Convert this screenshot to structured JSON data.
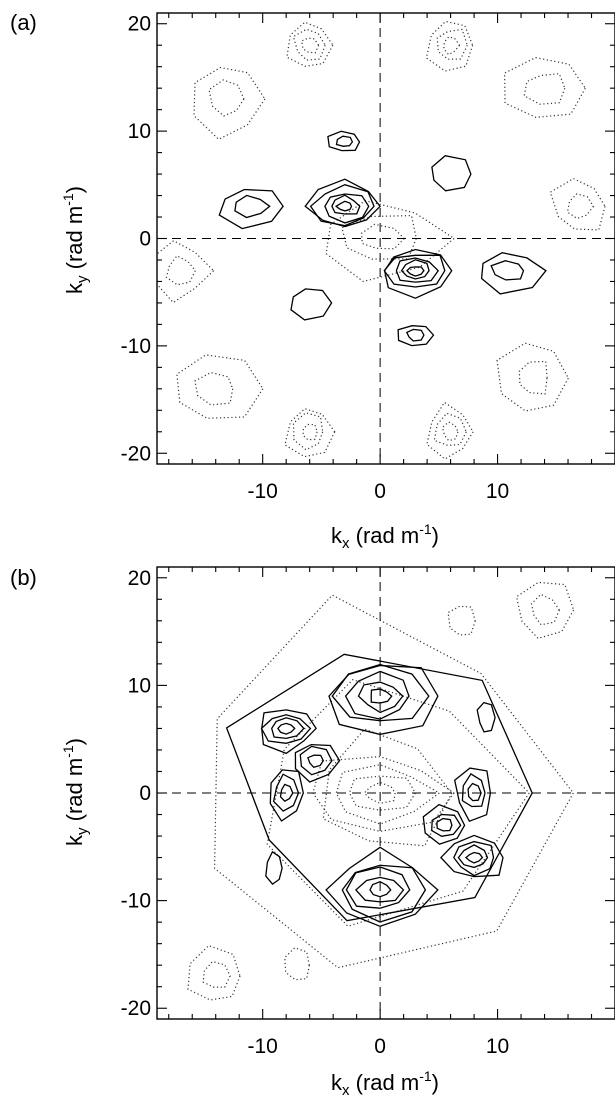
{
  "chart_data": [
    {
      "type": "contour",
      "panel_label": "(a)",
      "xlabel": {
        "main": "k",
        "sub": "x",
        "unit": " (rad m",
        "sup": "-1",
        "close": ")"
      },
      "ylabel": {
        "main": "k",
        "sub": "y",
        "unit": " (rad m",
        "sup": "-1",
        "close": ")"
      },
      "xlim": [
        -19,
        20
      ],
      "ylim": [
        -21,
        21
      ],
      "xticks": [
        -10,
        0,
        10
      ],
      "xtick_labels": [
        "-10",
        "0",
        "10"
      ],
      "yticks": [
        -20,
        -10,
        0,
        10,
        20
      ],
      "ytick_labels": [
        "-20",
        "-10",
        "0",
        "10",
        "20"
      ],
      "zero_lines": true,
      "solid_peaks": [
        {
          "x": -11,
          "y": 3,
          "rings": 2,
          "rx": 3.0,
          "ry": 1.9
        },
        {
          "x": -3,
          "y": 3,
          "rings": 5,
          "rx": 3.2,
          "ry": 2.2
        },
        {
          "x": -3,
          "y": 9,
          "rings": 2,
          "rx": 1.4,
          "ry": 1.0
        },
        {
          "x": 6,
          "y": 6,
          "rings": 1,
          "rx": 1.9,
          "ry": 1.6
        },
        {
          "x": -6,
          "y": -6,
          "rings": 1,
          "rx": 1.9,
          "ry": 1.6
        },
        {
          "x": 3,
          "y": -3,
          "rings": 5,
          "rx": 3.2,
          "ry": 2.2
        },
        {
          "x": 3,
          "y": -9,
          "rings": 2,
          "rx": 1.4,
          "ry": 1.0
        },
        {
          "x": 11,
          "y": -3,
          "rings": 2,
          "rx": 3.0,
          "ry": 1.9
        }
      ],
      "dotted_features": [
        {
          "x": -6,
          "y": 18,
          "rings": 3,
          "rx": 2.0,
          "ry": 2.4
        },
        {
          "x": 6,
          "y": 18,
          "rings": 3,
          "rx": 2.0,
          "ry": 2.4
        },
        {
          "x": -6,
          "y": -18,
          "rings": 3,
          "rx": 2.0,
          "ry": 2.4
        },
        {
          "x": 6,
          "y": -18,
          "rings": 3,
          "rx": 2.0,
          "ry": 2.4
        },
        {
          "x": -17,
          "y": -3,
          "rings": 2,
          "rx": 2.4,
          "ry": 2.6
        },
        {
          "x": 17,
          "y": 3,
          "rings": 2,
          "rx": 2.4,
          "ry": 2.6
        },
        {
          "x": -13,
          "y": 13,
          "rings": 2,
          "rx": 3.0,
          "ry": 3.4
        },
        {
          "x": 13,
          "y": -13,
          "rings": 2,
          "rx": 3.0,
          "ry": 3.4
        },
        {
          "x": -14,
          "y": -14,
          "rings": 2,
          "rx": 3.5,
          "ry": 3.0
        },
        {
          "x": 14,
          "y": 14,
          "rings": 2,
          "rx": 3.5,
          "ry": 3.0
        },
        {
          "x": 0,
          "y": 0,
          "rings": 3,
          "rx": 5.5,
          "ry": 3.5
        }
      ]
    },
    {
      "type": "contour",
      "panel_label": "(b)",
      "xlabel": {
        "main": "k",
        "sub": "x",
        "unit": " (rad m",
        "sup": "-1",
        "close": ")"
      },
      "ylabel": {
        "main": "k",
        "sub": "y",
        "unit": " (rad m",
        "sup": "-1",
        "close": ")"
      },
      "xlim": [
        -19,
        20
      ],
      "ylim": [
        -21,
        21
      ],
      "xticks": [
        -10,
        0,
        10
      ],
      "xtick_labels": [
        "-10",
        "0",
        "10"
      ],
      "yticks": [
        -20,
        -10,
        0,
        10,
        20
      ],
      "ytick_labels": [
        "-20",
        "-10",
        "0",
        "10",
        "20"
      ],
      "zero_lines": true,
      "solid_peaks": [
        {
          "x": -8,
          "y": 6,
          "rings": 4,
          "rx": 2.6,
          "ry": 2.0
        },
        {
          "x": -5.5,
          "y": 3,
          "rings": 3,
          "rx": 2.0,
          "ry": 1.8
        },
        {
          "x": -8,
          "y": 0,
          "rings": 3,
          "rx": 1.6,
          "ry": 2.4
        },
        {
          "x": -9,
          "y": -7,
          "rings": 1,
          "rx": 0.7,
          "ry": 1.4
        },
        {
          "x": 0,
          "y": 9,
          "rings": 5,
          "rx": 4.5,
          "ry": 3.4
        },
        {
          "x": 0,
          "y": -9,
          "rings": 5,
          "rx": 4.5,
          "ry": 3.4
        },
        {
          "x": 8,
          "y": -6,
          "rings": 4,
          "rx": 2.6,
          "ry": 2.0
        },
        {
          "x": 5.5,
          "y": -3,
          "rings": 3,
          "rx": 2.0,
          "ry": 1.8
        },
        {
          "x": 8,
          "y": 0,
          "rings": 3,
          "rx": 1.6,
          "ry": 2.4
        },
        {
          "x": 9,
          "y": 7,
          "rings": 1,
          "rx": 0.7,
          "ry": 1.4
        },
        {
          "x": 0,
          "y": 0,
          "rings": 1,
          "rx": 12.5,
          "ry": 12.0
        }
      ],
      "dotted_features": [
        {
          "x": 0,
          "y": 0,
          "rings": 4,
          "rx": 6.0,
          "ry": 3.6
        },
        {
          "x": 0,
          "y": 0,
          "rings": 3,
          "rx": 16.5,
          "ry": 17.0
        },
        {
          "x": -14,
          "y": -17,
          "rings": 2,
          "rx": 2.4,
          "ry": 2.6
        },
        {
          "x": 14,
          "y": 17,
          "rings": 2,
          "rx": 2.4,
          "ry": 2.6
        },
        {
          "x": 7,
          "y": 16,
          "rings": 1,
          "rx": 1.2,
          "ry": 1.6
        },
        {
          "x": -7,
          "y": -16,
          "rings": 1,
          "rx": 1.2,
          "ry": 1.6
        }
      ]
    }
  ]
}
